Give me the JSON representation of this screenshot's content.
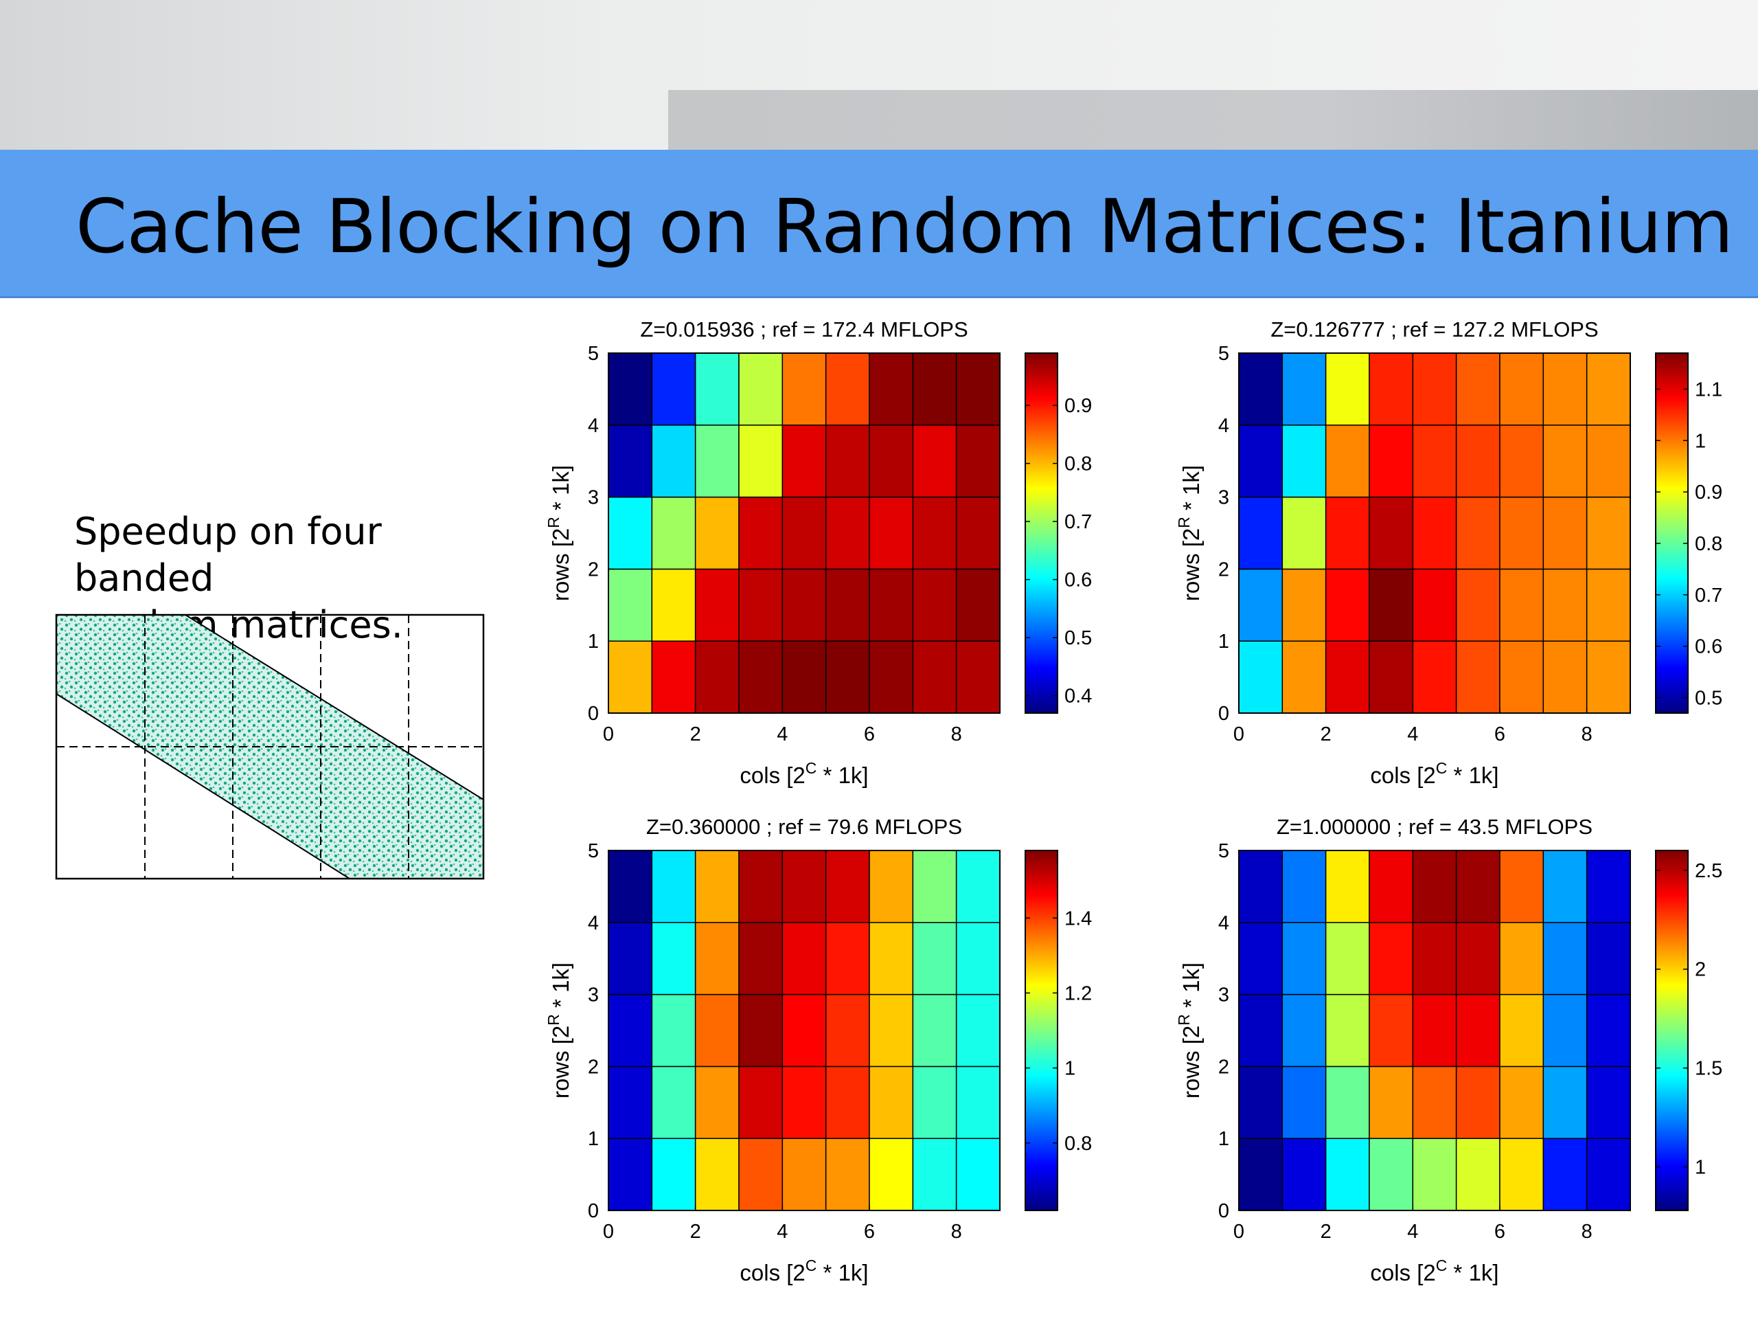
{
  "slide": {
    "title": "Cache Blocking on Random Matrices: Itanium",
    "caption_line1": "Speedup on four banded",
    "caption_line2": "random matrices."
  },
  "colors": {
    "title_band": "#5b9ff0",
    "colormap": "jet"
  },
  "chart_data": [
    {
      "type": "heatmap",
      "title": "Z=0.015936 ; ref = 172.4 MFLOPS",
      "xlabel": "cols [2^C * 1k]",
      "ylabel": "rows [2^R * 1k]",
      "x_range": [
        0,
        9
      ],
      "y_range": [
        0,
        5
      ],
      "x_ticks": [
        "0",
        "2",
        "4",
        "6",
        "8"
      ],
      "y_ticks": [
        "0",
        "1",
        "2",
        "3",
        "4",
        "5"
      ],
      "clim": [
        0.37,
        0.99
      ],
      "colorbar_ticks": [
        "0.4",
        "0.5",
        "0.6",
        "0.7",
        "0.8",
        "0.9"
      ],
      "colorbar_values": [
        0.4,
        0.5,
        0.6,
        0.7,
        0.8,
        0.9
      ],
      "values": [
        [
          0.8,
          0.92,
          0.96,
          0.98,
          0.99,
          0.99,
          0.98,
          0.96,
          0.96
        ],
        [
          0.68,
          0.77,
          0.93,
          0.95,
          0.96,
          0.97,
          0.97,
          0.96,
          0.98
        ],
        [
          0.6,
          0.7,
          0.8,
          0.94,
          0.95,
          0.94,
          0.93,
          0.95,
          0.96
        ],
        [
          0.4,
          0.58,
          0.67,
          0.74,
          0.93,
          0.95,
          0.96,
          0.93,
          0.97
        ],
        [
          0.37,
          0.47,
          0.63,
          0.72,
          0.84,
          0.87,
          0.98,
          0.99,
          0.99
        ]
      ]
    },
    {
      "type": "heatmap",
      "title": "Z=0.126777 ; ref = 127.2 MFLOPS",
      "xlabel": "cols [2^C * 1k]",
      "ylabel": "rows [2^R * 1k]",
      "x_range": [
        0,
        9
      ],
      "y_range": [
        0,
        5
      ],
      "x_ticks": [
        "0",
        "2",
        "4",
        "6",
        "8"
      ],
      "y_ticks": [
        "0",
        "1",
        "2",
        "3",
        "4",
        "5"
      ],
      "clim": [
        0.47,
        1.17
      ],
      "colorbar_ticks": [
        "0.5",
        "0.6",
        "0.7",
        "0.8",
        "0.9",
        "1",
        "1.1"
      ],
      "colorbar_values": [
        0.5,
        0.6,
        0.7,
        0.8,
        0.9,
        1.0,
        1.1
      ],
      "values": [
        [
          0.72,
          0.98,
          1.1,
          1.14,
          1.07,
          1.03,
          1.0,
          0.99,
          0.98
        ],
        [
          0.66,
          0.98,
          1.08,
          1.17,
          1.09,
          1.03,
          1.0,
          0.99,
          0.98
        ],
        [
          0.58,
          0.87,
          1.07,
          1.13,
          1.07,
          1.03,
          1.01,
          1.0,
          0.98
        ],
        [
          0.52,
          0.72,
          0.99,
          1.08,
          1.05,
          1.04,
          1.02,
          0.99,
          0.99
        ],
        [
          0.48,
          0.66,
          0.9,
          1.06,
          1.05,
          1.02,
          1.0,
          0.99,
          0.98
        ]
      ]
    },
    {
      "type": "heatmap",
      "title": "Z=0.360000 ; ref = 79.6 MFLOPS",
      "xlabel": "cols [2^C * 1k]",
      "ylabel": "rows [2^R * 1k]",
      "x_range": [
        0,
        9
      ],
      "y_range": [
        0,
        5
      ],
      "x_ticks": [
        "0",
        "2",
        "4",
        "6",
        "8"
      ],
      "y_ticks": [
        "0",
        "1",
        "2",
        "3",
        "4",
        "5"
      ],
      "clim": [
        0.62,
        1.58
      ],
      "colorbar_ticks": [
        "0.8",
        "1",
        "1.2",
        "1.4"
      ],
      "colorbar_values": [
        0.8,
        1.0,
        1.2,
        1.4
      ],
      "values": [
        [
          0.7,
          0.98,
          1.25,
          1.38,
          1.33,
          1.32,
          1.22,
          1.0,
          0.98
        ],
        [
          0.7,
          1.04,
          1.32,
          1.5,
          1.45,
          1.42,
          1.28,
          1.04,
          1.0
        ],
        [
          0.7,
          1.04,
          1.36,
          1.56,
          1.46,
          1.42,
          1.27,
          1.06,
          1.0
        ],
        [
          0.68,
          0.99,
          1.33,
          1.55,
          1.48,
          1.44,
          1.27,
          1.06,
          1.0
        ],
        [
          0.63,
          0.96,
          1.3,
          1.54,
          1.52,
          1.5,
          1.3,
          1.1,
          1.0
        ]
      ]
    },
    {
      "type": "heatmap",
      "title": "Z=1.000000 ; ref = 43.5 MFLOPS",
      "xlabel": "cols [2^C * 1k]",
      "ylabel": "rows [2^R * 1k]",
      "x_range": [
        0,
        9
      ],
      "y_range": [
        0,
        5
      ],
      "x_ticks": [
        "0",
        "2",
        "4",
        "6",
        "8"
      ],
      "y_ticks": [
        "0",
        "1",
        "2",
        "3",
        "4",
        "5"
      ],
      "clim": [
        0.78,
        2.6
      ],
      "colorbar_ticks": [
        "1",
        "1.5",
        "2",
        "2.5"
      ],
      "colorbar_values": [
        1.0,
        1.5,
        2.0,
        2.5
      ],
      "values": [
        [
          0.8,
          0.95,
          1.45,
          1.65,
          1.75,
          1.85,
          1.97,
          1.05,
          0.95
        ],
        [
          0.85,
          1.2,
          1.65,
          2.1,
          2.2,
          2.25,
          2.08,
          1.3,
          0.95
        ],
        [
          0.9,
          1.25,
          1.8,
          2.28,
          2.4,
          2.4,
          2.02,
          1.25,
          0.95
        ],
        [
          0.92,
          1.25,
          1.8,
          2.35,
          2.48,
          2.48,
          2.08,
          1.25,
          0.92
        ],
        [
          0.9,
          1.22,
          1.95,
          2.4,
          2.55,
          2.55,
          2.2,
          1.3,
          0.95
        ]
      ]
    }
  ]
}
